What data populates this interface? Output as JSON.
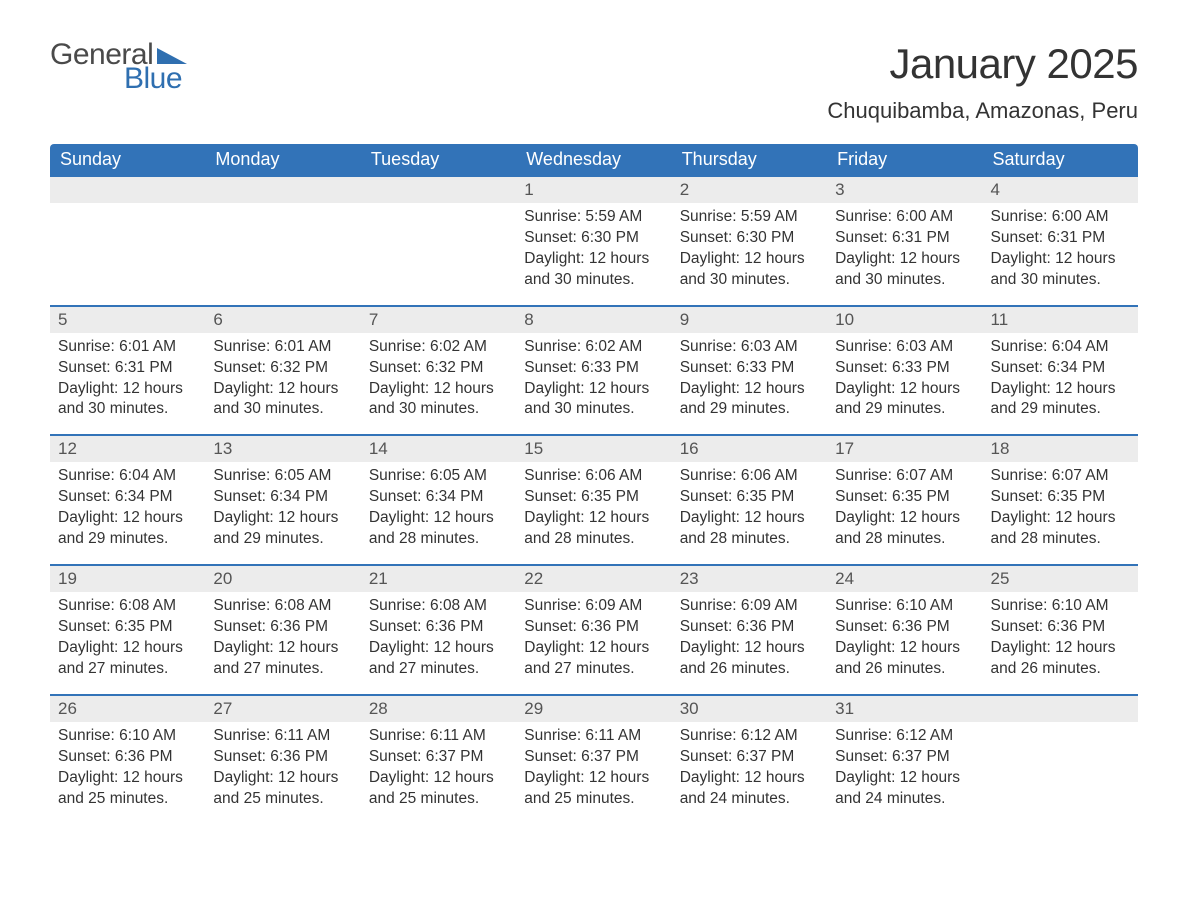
{
  "brand": {
    "word1": "General",
    "word2": "Blue",
    "color_text": "#4a4a4a",
    "color_accent": "#2f6fb0"
  },
  "title": {
    "month": "January 2025",
    "location": "Chuquibamba, Amazonas, Peru"
  },
  "theme": {
    "header_bg": "#3273b8",
    "header_text": "#ffffff",
    "row_accent_border": "#3273b8",
    "daynum_bg": "#ececec",
    "daynum_text": "#555555",
    "body_text": "#333333",
    "page_bg": "#ffffff",
    "font_family": "Arial, Helvetica, sans-serif",
    "month_fontsize_pt": 32,
    "location_fontsize_pt": 17,
    "header_fontsize_pt": 14,
    "cell_fontsize_pt": 12
  },
  "weekdays": [
    "Sunday",
    "Monday",
    "Tuesday",
    "Wednesday",
    "Thursday",
    "Friday",
    "Saturday"
  ],
  "weeks": [
    [
      null,
      null,
      null,
      {
        "n": "1",
        "sunrise": "5:59 AM",
        "sunset": "6:30 PM",
        "daylight": "12 hours and 30 minutes."
      },
      {
        "n": "2",
        "sunrise": "5:59 AM",
        "sunset": "6:30 PM",
        "daylight": "12 hours and 30 minutes."
      },
      {
        "n": "3",
        "sunrise": "6:00 AM",
        "sunset": "6:31 PM",
        "daylight": "12 hours and 30 minutes."
      },
      {
        "n": "4",
        "sunrise": "6:00 AM",
        "sunset": "6:31 PM",
        "daylight": "12 hours and 30 minutes."
      }
    ],
    [
      {
        "n": "5",
        "sunrise": "6:01 AM",
        "sunset": "6:31 PM",
        "daylight": "12 hours and 30 minutes."
      },
      {
        "n": "6",
        "sunrise": "6:01 AM",
        "sunset": "6:32 PM",
        "daylight": "12 hours and 30 minutes."
      },
      {
        "n": "7",
        "sunrise": "6:02 AM",
        "sunset": "6:32 PM",
        "daylight": "12 hours and 30 minutes."
      },
      {
        "n": "8",
        "sunrise": "6:02 AM",
        "sunset": "6:33 PM",
        "daylight": "12 hours and 30 minutes."
      },
      {
        "n": "9",
        "sunrise": "6:03 AM",
        "sunset": "6:33 PM",
        "daylight": "12 hours and 29 minutes."
      },
      {
        "n": "10",
        "sunrise": "6:03 AM",
        "sunset": "6:33 PM",
        "daylight": "12 hours and 29 minutes."
      },
      {
        "n": "11",
        "sunrise": "6:04 AM",
        "sunset": "6:34 PM",
        "daylight": "12 hours and 29 minutes."
      }
    ],
    [
      {
        "n": "12",
        "sunrise": "6:04 AM",
        "sunset": "6:34 PM",
        "daylight": "12 hours and 29 minutes."
      },
      {
        "n": "13",
        "sunrise": "6:05 AM",
        "sunset": "6:34 PM",
        "daylight": "12 hours and 29 minutes."
      },
      {
        "n": "14",
        "sunrise": "6:05 AM",
        "sunset": "6:34 PM",
        "daylight": "12 hours and 28 minutes."
      },
      {
        "n": "15",
        "sunrise": "6:06 AM",
        "sunset": "6:35 PM",
        "daylight": "12 hours and 28 minutes."
      },
      {
        "n": "16",
        "sunrise": "6:06 AM",
        "sunset": "6:35 PM",
        "daylight": "12 hours and 28 minutes."
      },
      {
        "n": "17",
        "sunrise": "6:07 AM",
        "sunset": "6:35 PM",
        "daylight": "12 hours and 28 minutes."
      },
      {
        "n": "18",
        "sunrise": "6:07 AM",
        "sunset": "6:35 PM",
        "daylight": "12 hours and 28 minutes."
      }
    ],
    [
      {
        "n": "19",
        "sunrise": "6:08 AM",
        "sunset": "6:35 PM",
        "daylight": "12 hours and 27 minutes."
      },
      {
        "n": "20",
        "sunrise": "6:08 AM",
        "sunset": "6:36 PM",
        "daylight": "12 hours and 27 minutes."
      },
      {
        "n": "21",
        "sunrise": "6:08 AM",
        "sunset": "6:36 PM",
        "daylight": "12 hours and 27 minutes."
      },
      {
        "n": "22",
        "sunrise": "6:09 AM",
        "sunset": "6:36 PM",
        "daylight": "12 hours and 27 minutes."
      },
      {
        "n": "23",
        "sunrise": "6:09 AM",
        "sunset": "6:36 PM",
        "daylight": "12 hours and 26 minutes."
      },
      {
        "n": "24",
        "sunrise": "6:10 AM",
        "sunset": "6:36 PM",
        "daylight": "12 hours and 26 minutes."
      },
      {
        "n": "25",
        "sunrise": "6:10 AM",
        "sunset": "6:36 PM",
        "daylight": "12 hours and 26 minutes."
      }
    ],
    [
      {
        "n": "26",
        "sunrise": "6:10 AM",
        "sunset": "6:36 PM",
        "daylight": "12 hours and 25 minutes."
      },
      {
        "n": "27",
        "sunrise": "6:11 AM",
        "sunset": "6:36 PM",
        "daylight": "12 hours and 25 minutes."
      },
      {
        "n": "28",
        "sunrise": "6:11 AM",
        "sunset": "6:37 PM",
        "daylight": "12 hours and 25 minutes."
      },
      {
        "n": "29",
        "sunrise": "6:11 AM",
        "sunset": "6:37 PM",
        "daylight": "12 hours and 25 minutes."
      },
      {
        "n": "30",
        "sunrise": "6:12 AM",
        "sunset": "6:37 PM",
        "daylight": "12 hours and 24 minutes."
      },
      {
        "n": "31",
        "sunrise": "6:12 AM",
        "sunset": "6:37 PM",
        "daylight": "12 hours and 24 minutes."
      },
      null
    ]
  ],
  "labels": {
    "sunrise": "Sunrise:",
    "sunset": "Sunset:",
    "daylight": "Daylight:"
  }
}
